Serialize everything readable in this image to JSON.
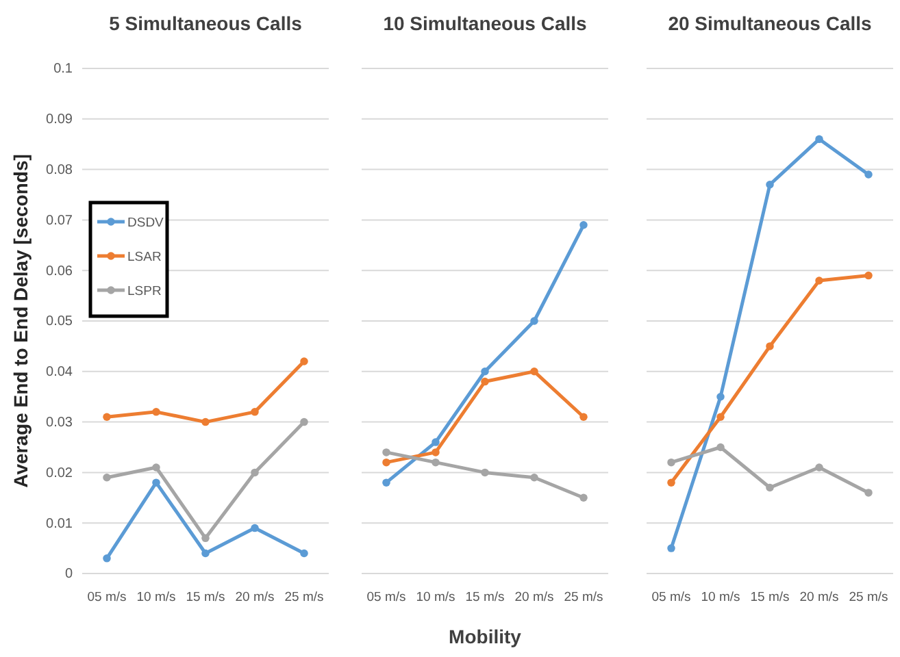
{
  "chart_data": [
    {
      "type": "line",
      "title": "5 Simultaneous Calls",
      "ylabel": "Average End to End Delay [seconds]",
      "categories": [
        "05 m/s",
        "10 m/s",
        "15 m/s",
        "20 m/s",
        "25 m/s"
      ],
      "series": [
        {
          "name": "DSDV",
          "color": "#5b9bd5",
          "values": [
            0.003,
            0.018,
            0.004,
            0.009,
            0.004
          ]
        },
        {
          "name": "LSAR",
          "color": "#ed7d31",
          "values": [
            0.031,
            0.032,
            0.03,
            0.032,
            0.042
          ]
        },
        {
          "name": "LSPR",
          "color": "#a5a5a5",
          "values": [
            0.019,
            0.021,
            0.007,
            0.02,
            0.03
          ]
        }
      ],
      "ylim": [
        0,
        0.1
      ],
      "yticks": [
        0,
        0.01,
        0.02,
        0.03,
        0.04,
        0.05,
        0.06,
        0.07,
        0.08,
        0.09,
        0.1
      ],
      "grid": "y",
      "legend": "left",
      "marker": "circle"
    },
    {
      "type": "line",
      "title": "10 Simultaneous Calls",
      "xlabel": "Mobility",
      "categories": [
        "05 m/s",
        "10 m/s",
        "15 m/s",
        "20 m/s",
        "25 m/s"
      ],
      "series": [
        {
          "color": "#5b9bd5",
          "values": [
            0.018,
            0.026,
            0.04,
            0.05,
            0.069
          ]
        },
        {
          "color": "#ed7d31",
          "values": [
            0.022,
            0.024,
            0.038,
            0.04,
            0.031
          ]
        },
        {
          "color": "#a5a5a5",
          "values": [
            0.024,
            0.022,
            0.02,
            0.019,
            0.015
          ]
        }
      ],
      "ylim": [
        0,
        0.1
      ],
      "yticks": [
        0,
        0.01,
        0.02,
        0.03,
        0.04,
        0.05,
        0.06,
        0.07,
        0.08,
        0.09,
        0.1
      ],
      "grid": "y",
      "tick_labels": "x",
      "marker": "circle"
    },
    {
      "type": "line",
      "title": "20 Simultaneous Calls",
      "categories": [
        "05 m/s",
        "10 m/s",
        "15 m/s",
        "20 m/s",
        "25 m/s"
      ],
      "series": [
        {
          "color": "#5b9bd5",
          "values": [
            0.005,
            0.035,
            0.077,
            0.086,
            0.079
          ]
        },
        {
          "color": "#ed7d31",
          "values": [
            0.018,
            0.031,
            0.045,
            0.058,
            0.059
          ]
        },
        {
          "color": "#a5a5a5",
          "values": [
            0.022,
            0.025,
            0.017,
            0.021,
            0.016
          ]
        }
      ],
      "ylim": [
        0,
        0.1
      ],
      "yticks": [
        0,
        0.01,
        0.02,
        0.03,
        0.04,
        0.05,
        0.06,
        0.07,
        0.08,
        0.09,
        0.1
      ],
      "grid": "y",
      "tick_labels": "x",
      "marker": "circle"
    }
  ]
}
